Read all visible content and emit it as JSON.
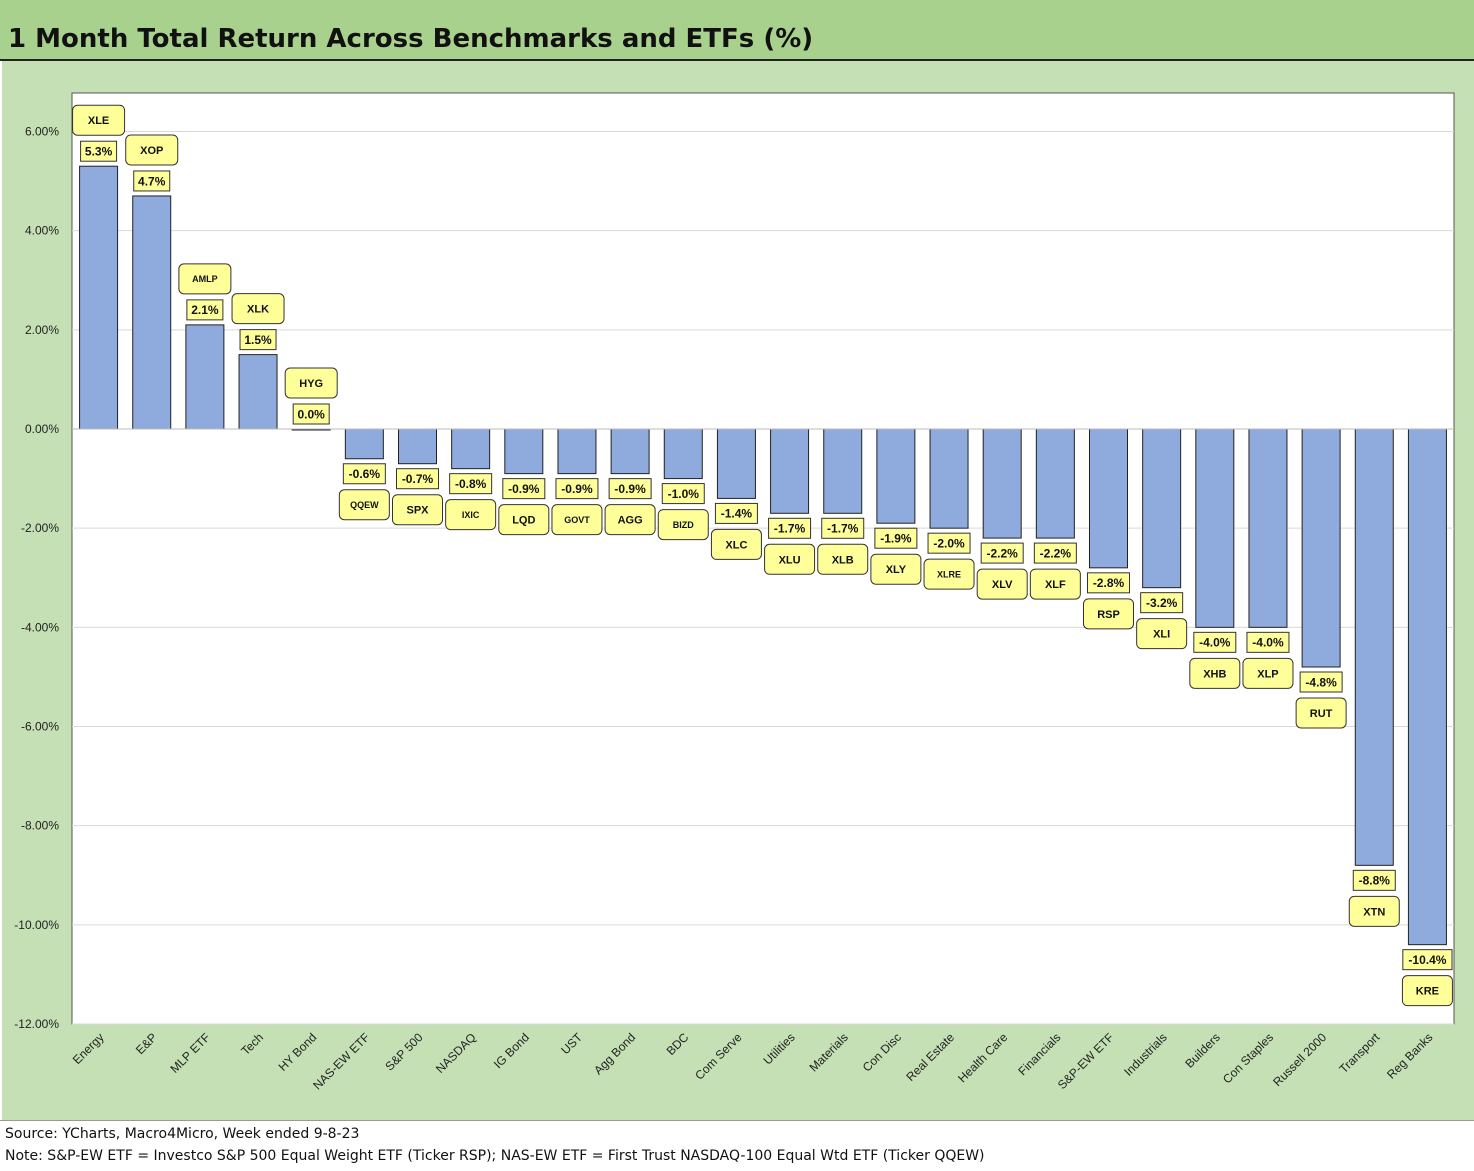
{
  "title": "1 Month Total Return Across Benchmarks and ETFs (%)",
  "notes": {
    "source": "Source: YCharts, Macro4Micro, Week ended 9-8-23",
    "note": "Note: S&P-EW ETF = Investco S&P 500 Equal Weight ETF (Ticker RSP); NAS-EW ETF = First Trust NASDAQ-100 Equal Wtd ETF (Ticker QQEW)"
  },
  "colors": {
    "bar": "#8faadc",
    "label_bg": "#ffff99",
    "plot_bg": "#ffffff",
    "frame_bg": "#c5e0b4",
    "title_bg": "#a9d18e"
  },
  "chart_data": {
    "type": "bar",
    "title": "1 Month Total Return Across Benchmarks and ETFs (%)",
    "categories": [
      "Energy",
      "E&P",
      "MLP ETF",
      "Tech",
      "HY Bond",
      "NAS-EW ETF",
      "S&P 500",
      "NASDAQ",
      "IG Bond",
      "UST",
      "Agg Bond",
      "BDC",
      "Com Serve",
      "Utilities",
      "Materials",
      "Con Disc",
      "Real Estate",
      "Health Care",
      "Financials",
      "S&P-EW ETF",
      "Industrials",
      "Builders",
      "Con Staples",
      "Russell 2000",
      "Transport",
      "Reg Banks"
    ],
    "tickers": [
      "XLE",
      "XOP",
      "AMLP",
      "XLK",
      "HYG",
      "QQEW",
      "SPX",
      "IXIC",
      "LQD",
      "GOVT",
      "AGG",
      "BIZD",
      "XLC",
      "XLU",
      "XLB",
      "XLY",
      "XLRE",
      "XLV",
      "XLF",
      "RSP",
      "XLI",
      "XHB",
      "XLP",
      "RUT",
      "XTN",
      "KRE"
    ],
    "values": [
      5.3,
      4.7,
      2.1,
      1.5,
      0.0,
      -0.6,
      -0.7,
      -0.8,
      -0.9,
      -0.9,
      -0.9,
      -1.0,
      -1.4,
      -1.7,
      -1.7,
      -1.9,
      -2.0,
      -2.2,
      -2.2,
      -2.8,
      -3.2,
      -4.0,
      -4.0,
      -4.8,
      -8.8,
      -10.4
    ],
    "value_labels": [
      "5.3%",
      "4.7%",
      "2.1%",
      "1.5%",
      "0.0%",
      "-0.6%",
      "-0.7%",
      "-0.8%",
      "-0.9%",
      "-0.9%",
      "-0.9%",
      "-1.0%",
      "-1.4%",
      "-1.7%",
      "-1.7%",
      "-1.9%",
      "-2.0%",
      "-2.2%",
      "-2.2%",
      "-2.8%",
      "-3.2%",
      "-4.0%",
      "-4.0%",
      "-4.8%",
      "-8.8%",
      "-10.4%"
    ],
    "yticks": [
      6,
      4,
      2,
      0,
      -2,
      -4,
      -6,
      -8,
      -10,
      -12
    ],
    "ytick_labels": [
      "6.00%",
      "4.00%",
      "2.00%",
      "0.00%",
      "-2.00%",
      "-4.00%",
      "-6.00%",
      "-8.00%",
      "-10.00%",
      "-12.00%"
    ],
    "ylim": [
      -12,
      6.8
    ],
    "grid": true,
    "xlabel": "",
    "ylabel": ""
  }
}
